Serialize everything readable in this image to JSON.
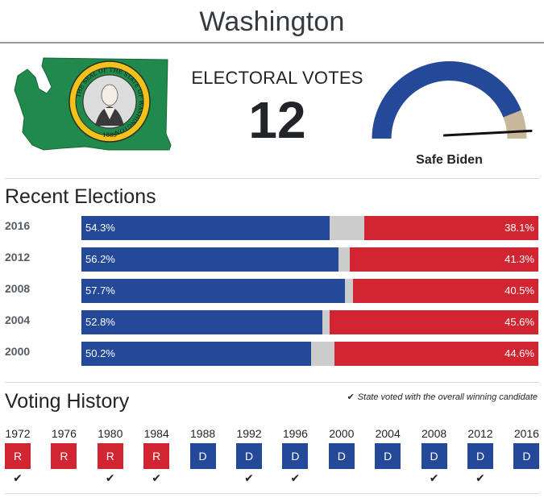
{
  "page": {
    "title": "Washington"
  },
  "seal": {
    "ring_text": "THE SEAL OF THE STATE OF WASHINGTON",
    "year": "1889"
  },
  "electoral": {
    "label": "ELECTORAL VOTES",
    "count": "12"
  },
  "rating": {
    "label": "Safe Biden",
    "lean_fraction": 0.97
  },
  "colors": {
    "dem": "#244999",
    "rep": "#d22532",
    "other": "#cccccc",
    "map_green": "#1f8a4c"
  },
  "recent": {
    "title": "Recent Elections",
    "elections": [
      {
        "year": "2016",
        "dem": 54.3,
        "rep": 38.1,
        "dem_label": "54.3%",
        "rep_label": "38.1%"
      },
      {
        "year": "2012",
        "dem": 56.2,
        "rep": 41.3,
        "dem_label": "56.2%",
        "rep_label": "41.3%"
      },
      {
        "year": "2008",
        "dem": 57.7,
        "rep": 40.5,
        "dem_label": "57.7%",
        "rep_label": "40.5%"
      },
      {
        "year": "2004",
        "dem": 52.8,
        "rep": 45.6,
        "dem_label": "52.8%",
        "rep_label": "45.6%"
      },
      {
        "year": "2000",
        "dem": 50.2,
        "rep": 44.6,
        "dem_label": "50.2%",
        "rep_label": "44.6%"
      }
    ]
  },
  "history": {
    "title": "Voting History",
    "legend": "State voted with the overall winning candidate",
    "check_symbol": "✔",
    "entries": [
      {
        "year": "1972",
        "party": "R",
        "winner": true
      },
      {
        "year": "1976",
        "party": "R",
        "winner": false
      },
      {
        "year": "1980",
        "party": "R",
        "winner": true
      },
      {
        "year": "1984",
        "party": "R",
        "winner": true
      },
      {
        "year": "1988",
        "party": "D",
        "winner": false
      },
      {
        "year": "1992",
        "party": "D",
        "winner": true
      },
      {
        "year": "1996",
        "party": "D",
        "winner": true
      },
      {
        "year": "2000",
        "party": "D",
        "winner": false
      },
      {
        "year": "2004",
        "party": "D",
        "winner": false
      },
      {
        "year": "2008",
        "party": "D",
        "winner": true
      },
      {
        "year": "2012",
        "party": "D",
        "winner": true
      },
      {
        "year": "2016",
        "party": "D",
        "winner": false
      }
    ]
  }
}
